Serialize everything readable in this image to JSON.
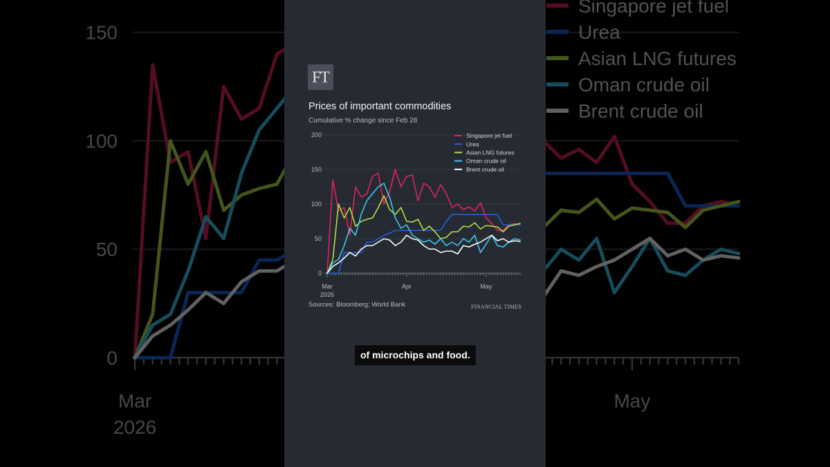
{
  "logo": "FT",
  "caption": "of microchips and food.",
  "chart_data": {
    "type": "line",
    "title": "Prices of important commodities",
    "subtitle": "Cumulative % change since Feb 28",
    "source": "Sources: Bloomberg; World Bank",
    "brand": "FINANCIAL TIMES",
    "ylim": [
      0,
      200
    ],
    "yticks": [
      0,
      50,
      100,
      150,
      200
    ],
    "xlim": [
      0,
      68
    ],
    "xticks": [
      {
        "x": 0,
        "label": "Mar",
        "label2": "2026"
      },
      {
        "x": 28,
        "label": "Apr"
      },
      {
        "x": 56,
        "label": "May"
      }
    ],
    "x": [
      0,
      2,
      4,
      6,
      8,
      10,
      12,
      14,
      16,
      18,
      20,
      22,
      24,
      26,
      28,
      30,
      32,
      34,
      36,
      38,
      40,
      42,
      44,
      46,
      48,
      50,
      52,
      54,
      56,
      58,
      60,
      62,
      64,
      66,
      68
    ],
    "legend_position": "top-right",
    "series": [
      {
        "name": "Singapore jet fuel",
        "color": "#e0245e",
        "values": [
          0,
          135,
          90,
          95,
          55,
          125,
          110,
          115,
          140,
          145,
          100,
          118,
          150,
          125,
          140,
          142,
          105,
          130,
          125,
          110,
          128,
          115,
          95,
          100,
          92,
          96,
          90,
          102,
          80,
          72,
          62,
          62,
          70,
          72,
          70
        ]
      },
      {
        "name": "Urea",
        "color": "#1f64e0",
        "values": [
          0,
          0,
          0,
          30,
          30,
          30,
          30,
          45,
          45,
          50,
          55,
          58,
          62,
          62,
          62,
          62,
          62,
          62,
          62,
          62,
          62,
          75,
          85,
          85,
          85,
          85,
          85,
          85,
          85,
          85,
          85,
          70,
          70,
          70,
          70
        ]
      },
      {
        "name": "Asian LNG futures",
        "color": "#b4e04b",
        "values": [
          0,
          20,
          100,
          80,
          95,
          68,
          75,
          78,
          80,
          95,
          112,
          92,
          85,
          95,
          75,
          74,
          78,
          62,
          68,
          60,
          50,
          52,
          60,
          60,
          68,
          67,
          73,
          64,
          69,
          68,
          67,
          60,
          68,
          70,
          72
        ]
      },
      {
        "name": "Oman crude oil",
        "color": "#3ec9f0",
        "values": [
          0,
          15,
          20,
          40,
          65,
          55,
          85,
          105,
          115,
          125,
          130,
          110,
          80,
          65,
          70,
          55,
          50,
          45,
          48,
          42,
          50,
          40,
          45,
          40,
          50,
          45,
          55,
          30,
          42,
          55,
          40,
          38,
          45,
          50,
          48
        ]
      },
      {
        "name": "Brent crude oil",
        "color": "#ffffff",
        "values": [
          0,
          10,
          15,
          22,
          30,
          25,
          35,
          40,
          40,
          45,
          50,
          48,
          40,
          45,
          55,
          50,
          48,
          40,
          35,
          35,
          30,
          32,
          32,
          28,
          40,
          38,
          42,
          45,
          50,
          55,
          47,
          50,
          45,
          47,
          46
        ]
      }
    ]
  }
}
